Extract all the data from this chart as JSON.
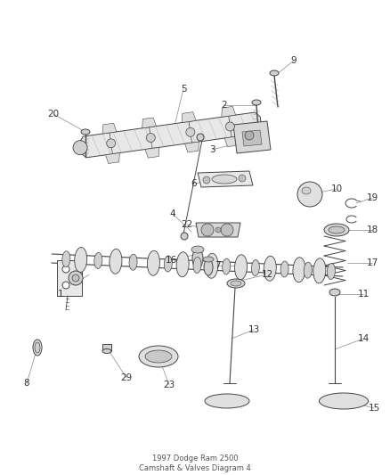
{
  "title": "1997 Dodge Ram 2500\nCamshaft & Valves Diagram 4",
  "background_color": "#ffffff",
  "fig_width": 4.38,
  "fig_height": 5.33,
  "dpi": 100,
  "line_color": "#444444",
  "label_color": "#333333",
  "label_fontsize": 7.5,
  "leader_color": "#888888",
  "leader_lw": 0.5,
  "part_lw": 0.7
}
